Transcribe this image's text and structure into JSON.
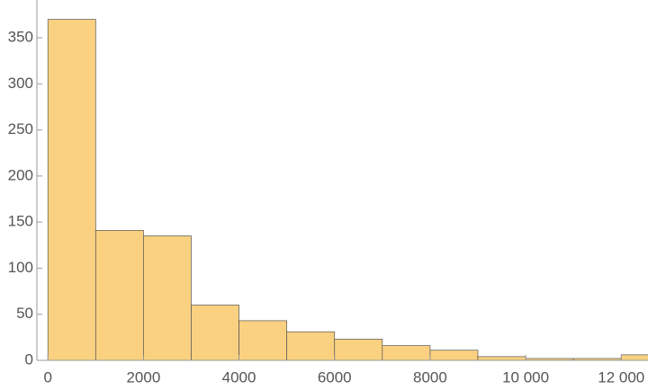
{
  "chart_data": {
    "type": "histogram",
    "bins": [
      0,
      1000,
      2000,
      3000,
      4000,
      5000,
      6000,
      7000,
      8000,
      9000,
      10000,
      11000,
      12000,
      13000
    ],
    "values": [
      370,
      141,
      135,
      60,
      43,
      31,
      23,
      16,
      11,
      4,
      2,
      2,
      6
    ],
    "color": "#fad180",
    "xlim": [
      -230,
      12560
    ],
    "ylim": [
      0,
      391
    ],
    "xticks": [
      0,
      2000,
      4000,
      6000,
      8000,
      {
        "value": 10000,
        "label": "10 000"
      },
      {
        "value": 12000,
        "label": "12 000"
      }
    ],
    "yticks": [
      0,
      50,
      100,
      150,
      200,
      250,
      300,
      350
    ],
    "grid": false
  }
}
